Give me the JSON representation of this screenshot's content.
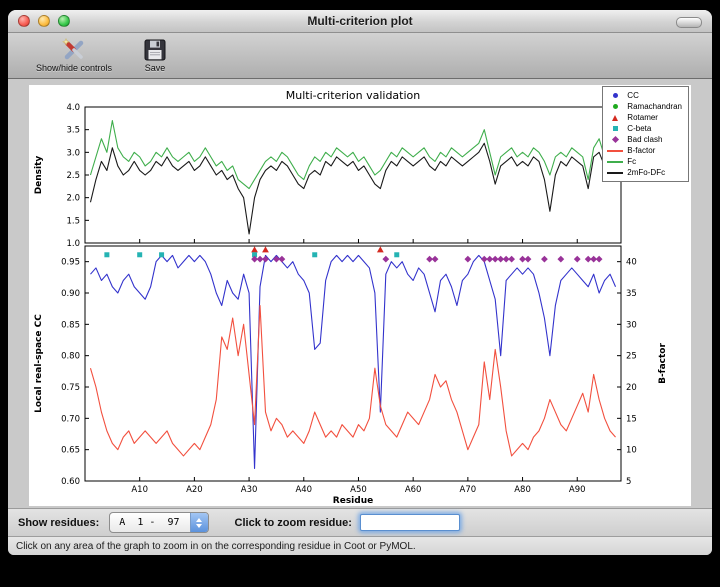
{
  "window": {
    "title": "Multi-criterion plot"
  },
  "toolbar": {
    "items": [
      {
        "label": "Show/hide controls"
      },
      {
        "label": "Save"
      }
    ]
  },
  "controls": {
    "show_residues_label": "Show residues:",
    "residue_range_value": "A  1 -  97",
    "zoom_prompt_label": "Click to zoom residue:",
    "zoom_input_value": ""
  },
  "status_bar": {
    "message": "Click on any area of the graph to zoom in on the corresponding residue in Coot or PyMOL."
  },
  "colors": {
    "cc_blue": "#3333cc",
    "bfactor_red": "#f2503f",
    "rotamer_red": "#d42a20",
    "fc_green": "#3fae4c",
    "ramachandran_green": "#1faa1f",
    "cbeta_teal": "#25b3b3",
    "badclash_purple": "#993399",
    "map_black": "#1a1a1a"
  },
  "legend": {
    "items": [
      {
        "label": "CC",
        "marker": "circle",
        "color": "#3333cc"
      },
      {
        "label": "Ramachandran",
        "marker": "circle",
        "color": "#1faa1f"
      },
      {
        "label": "Rotamer",
        "marker": "triangle",
        "color": "#d42a20"
      },
      {
        "label": "C-beta",
        "marker": "square",
        "color": "#25b3b3"
      },
      {
        "label": "Bad clash",
        "marker": "diamond",
        "color": "#993399"
      },
      {
        "label": "B-factor",
        "marker": "line",
        "color": "#f2503f"
      },
      {
        "label": "Fc",
        "marker": "line",
        "color": "#3fae4c"
      },
      {
        "label": "2mFo-DFc",
        "marker": "line",
        "color": "#1a1a1a"
      }
    ]
  },
  "chart_data": [
    {
      "type": "line",
      "title": "Multi-criterion validation",
      "ylabel": "Density",
      "ylim": [
        1.0,
        4.0
      ],
      "yticks": [
        "1.0",
        "1.5",
        "2.0",
        "2.5",
        "3.0",
        "3.5",
        "4.0"
      ],
      "xlim": [
        0,
        98
      ],
      "series": [
        {
          "name": "Fc",
          "color": "#3fae4c",
          "values": [
            2.5,
            2.9,
            3.3,
            3.0,
            3.7,
            3.1,
            2.9,
            2.8,
            3.0,
            2.9,
            2.7,
            2.8,
            3.0,
            2.9,
            3.1,
            2.9,
            2.8,
            2.9,
            3.0,
            2.8,
            2.9,
            3.1,
            2.9,
            2.7,
            2.8,
            2.6,
            2.7,
            2.4,
            2.3,
            2.2,
            2.4,
            2.6,
            2.8,
            2.9,
            2.8,
            3.0,
            2.9,
            2.7,
            2.5,
            2.4,
            2.7,
            2.9,
            2.8,
            3.0,
            2.9,
            3.1,
            3.0,
            2.9,
            3.0,
            2.8,
            2.9,
            2.7,
            2.5,
            2.6,
            2.8,
            3.0,
            2.9,
            3.1,
            3.0,
            2.9,
            3.0,
            3.1,
            2.9,
            2.8,
            3.0,
            2.9,
            3.1,
            3.0,
            2.9,
            3.0,
            3.1,
            3.2,
            3.5,
            3.0,
            2.5,
            2.9,
            3.0,
            3.1,
            2.9,
            3.0,
            2.9,
            3.1,
            3.0,
            2.8,
            2.5,
            2.9,
            3.0,
            2.9,
            3.1,
            3.0,
            2.9,
            2.4,
            3.1,
            3.3,
            2.9,
            3.3,
            3.0
          ]
        },
        {
          "name": "2mFo-DFc",
          "color": "#1a1a1a",
          "values": [
            1.9,
            2.4,
            2.8,
            2.6,
            3.1,
            2.7,
            2.5,
            2.6,
            2.8,
            2.6,
            2.5,
            2.6,
            2.8,
            2.7,
            2.9,
            2.7,
            2.6,
            2.7,
            2.8,
            2.6,
            2.7,
            2.9,
            2.7,
            2.5,
            2.6,
            2.4,
            2.5,
            2.2,
            2.0,
            1.2,
            2.0,
            2.4,
            2.6,
            2.7,
            2.6,
            2.8,
            2.7,
            2.5,
            2.3,
            2.2,
            2.5,
            2.6,
            2.5,
            2.8,
            2.7,
            2.9,
            2.8,
            2.7,
            2.8,
            2.6,
            2.7,
            2.5,
            2.3,
            2.2,
            2.6,
            2.8,
            2.7,
            2.9,
            2.8,
            2.7,
            2.8,
            2.9,
            2.7,
            2.6,
            2.8,
            2.7,
            2.9,
            2.8,
            2.7,
            2.8,
            2.9,
            3.0,
            3.2,
            2.8,
            2.3,
            2.7,
            2.8,
            2.9,
            2.7,
            2.8,
            2.7,
            2.9,
            2.8,
            2.4,
            1.7,
            2.5,
            2.8,
            2.7,
            2.9,
            2.8,
            2.7,
            2.2,
            2.9,
            3.0,
            2.7,
            3.0,
            2.9
          ]
        }
      ]
    },
    {
      "type": "line",
      "xlabel": "Residue",
      "ylabel_left": "Local real-space CC",
      "ylabel_right": "B-factor",
      "ylim_left": [
        0.6,
        0.975
      ],
      "ylim_right": [
        5,
        42.5
      ],
      "yticks_left": [
        "0.60",
        "0.65",
        "0.70",
        "0.75",
        "0.80",
        "0.85",
        "0.90",
        "0.95"
      ],
      "yticks_right": [
        "5",
        "10",
        "15",
        "20",
        "25",
        "30",
        "35",
        "40"
      ],
      "xticks": [
        "A10",
        "A20",
        "A30",
        "A40",
        "A50",
        "A60",
        "A70",
        "A80",
        "A90"
      ],
      "xlim": [
        0,
        98
      ],
      "series": [
        {
          "name": "CC",
          "axis": "left",
          "color": "#3333cc",
          "values": [
            0.93,
            0.94,
            0.92,
            0.93,
            0.91,
            0.9,
            0.92,
            0.93,
            0.91,
            0.9,
            0.89,
            0.91,
            0.95,
            0.96,
            0.95,
            0.96,
            0.94,
            0.95,
            0.96,
            0.95,
            0.96,
            0.95,
            0.93,
            0.9,
            0.88,
            0.92,
            0.9,
            0.89,
            0.93,
            0.9,
            0.62,
            0.91,
            0.96,
            0.95,
            0.96,
            0.95,
            0.94,
            0.95,
            0.93,
            0.92,
            0.9,
            0.81,
            0.82,
            0.92,
            0.95,
            0.96,
            0.95,
            0.96,
            0.95,
            0.96,
            0.95,
            0.94,
            0.9,
            0.71,
            0.93,
            0.95,
            0.94,
            0.95,
            0.93,
            0.92,
            0.94,
            0.93,
            0.9,
            0.87,
            0.92,
            0.93,
            0.91,
            0.88,
            0.92,
            0.93,
            0.95,
            0.96,
            0.95,
            0.92,
            0.89,
            0.8,
            0.92,
            0.93,
            0.94,
            0.93,
            0.94,
            0.93,
            0.9,
            0.86,
            0.8,
            0.88,
            0.92,
            0.93,
            0.94,
            0.93,
            0.92,
            0.91,
            0.93,
            0.9,
            0.92,
            0.93,
            0.91
          ]
        },
        {
          "name": "B-factor",
          "axis": "right",
          "color": "#f2503f",
          "values": [
            23,
            20,
            16,
            13,
            11,
            10,
            12,
            13,
            11,
            12,
            13,
            12,
            11,
            12,
            13,
            11,
            10,
            9,
            10,
            11,
            10,
            12,
            14,
            18,
            28,
            26,
            31,
            25,
            30,
            22,
            14,
            33,
            16,
            13,
            15,
            14,
            12,
            13,
            12,
            11,
            13,
            16,
            14,
            12,
            13,
            12,
            14,
            13,
            12,
            14,
            13,
            15,
            23,
            17,
            14,
            13,
            12,
            14,
            16,
            15,
            14,
            16,
            18,
            22,
            20,
            21,
            18,
            16,
            13,
            10,
            12,
            14,
            24,
            18,
            26,
            20,
            13,
            9,
            10,
            11,
            10,
            12,
            13,
            15,
            18,
            16,
            14,
            13,
            15,
            17,
            19,
            16,
            22,
            18,
            15,
            13,
            12
          ]
        }
      ],
      "markers": [
        {
          "name": "Rotamer",
          "shape": "triangle",
          "color": "#d42a20",
          "y": 0.969,
          "residues": [
            31,
            33,
            54
          ]
        },
        {
          "name": "C-beta",
          "shape": "square",
          "color": "#25b3b3",
          "y": 0.961,
          "residues": [
            4,
            10,
            14,
            31,
            42,
            57
          ]
        },
        {
          "name": "Bad clash",
          "shape": "diamond",
          "color": "#993399",
          "y": 0.954,
          "residues": [
            31,
            32,
            33,
            35,
            36,
            55,
            63,
            64,
            70,
            73,
            74,
            75,
            76,
            77,
            78,
            80,
            81,
            84,
            87,
            90,
            92,
            93,
            94
          ]
        }
      ]
    }
  ]
}
